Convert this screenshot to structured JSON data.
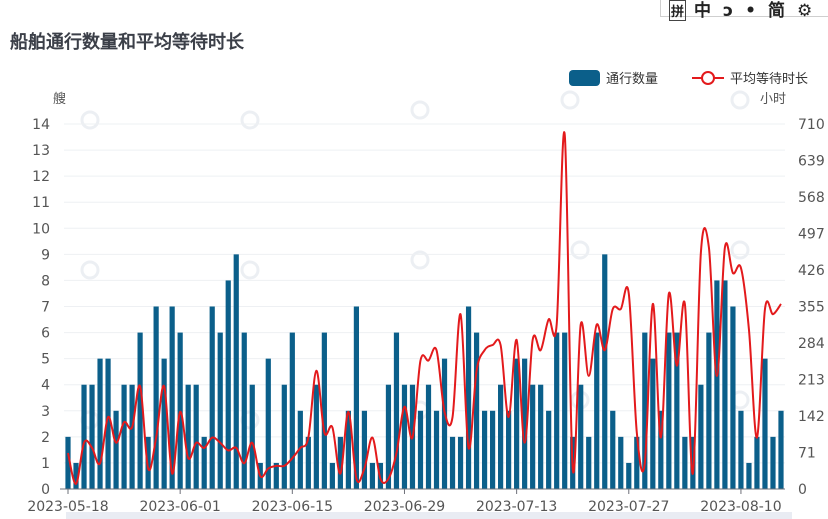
{
  "input_method_bar": {
    "items": [
      "拼",
      "中",
      "ɔ",
      "•",
      "简",
      "⚙"
    ]
  },
  "chart_data": {
    "type": "bar+line",
    "title": "船舶通行数量和平均等待时长",
    "left_axis": {
      "unit": "艘",
      "ylim": [
        0,
        14
      ],
      "ticks": [
        "0",
        "1",
        "2",
        "3",
        "4",
        "5",
        "6",
        "7",
        "8",
        "9",
        "10",
        "11",
        "12",
        "13",
        "14"
      ]
    },
    "right_axis": {
      "unit": "小时",
      "ylim": [
        0,
        710
      ],
      "ticks": [
        "0",
        "71",
        "142",
        "213",
        "284",
        "355",
        "426",
        "497",
        "568",
        "639",
        "710"
      ]
    },
    "x_tick_labels": [
      "2023-05-18",
      "2023-06-01",
      "2023-06-15",
      "2023-06-29",
      "2023-07-13",
      "2023-07-27",
      "2023-08-10"
    ],
    "x_tick_day_index": [
      0,
      14,
      28,
      42,
      56,
      70,
      84
    ],
    "legend": {
      "position": "top-right"
    },
    "series": [
      {
        "name": "通行数量",
        "type": "bar",
        "axis": "left",
        "color": "#0b5f8a",
        "values": [
          2,
          1,
          4,
          4,
          5,
          5,
          3,
          4,
          4,
          6,
          2,
          7,
          5,
          7,
          6,
          4,
          4,
          2,
          7,
          6,
          8,
          9,
          6,
          4,
          1,
          5,
          1,
          4,
          6,
          3,
          2,
          4,
          6,
          1,
          2,
          3,
          7,
          3,
          1,
          1,
          4,
          6,
          4,
          4,
          3,
          4,
          3,
          5,
          2,
          2,
          7,
          6,
          3,
          3,
          4,
          3,
          5,
          5,
          4,
          4,
          3,
          6,
          6,
          2,
          4,
          2,
          6,
          9,
          3,
          2,
          1,
          2,
          6,
          5,
          3,
          6,
          6,
          2,
          2,
          4,
          6,
          8,
          8,
          7,
          3,
          1,
          2,
          5,
          2,
          3
        ]
      },
      {
        "name": "平均等待时长",
        "type": "line",
        "axis": "right",
        "color": "#e31a1c",
        "values": [
          70,
          10,
          90,
          80,
          50,
          140,
          90,
          130,
          120,
          200,
          40,
          100,
          200,
          30,
          150,
          60,
          90,
          80,
          100,
          90,
          75,
          80,
          50,
          90,
          25,
          40,
          45,
          45,
          60,
          80,
          100,
          230,
          110,
          120,
          30,
          150,
          20,
          40,
          100,
          20,
          20,
          70,
          160,
          100,
          250,
          250,
          270,
          150,
          140,
          340,
          80,
          230,
          270,
          280,
          280,
          140,
          290,
          90,
          290,
          270,
          330,
          320,
          690,
          40,
          320,
          220,
          320,
          270,
          350,
          350,
          380,
          110,
          50,
          360,
          100,
          380,
          240,
          360,
          30,
          460,
          470,
          220,
          470,
          420,
          430,
          310,
          100,
          350,
          340,
          360
        ]
      }
    ]
  }
}
